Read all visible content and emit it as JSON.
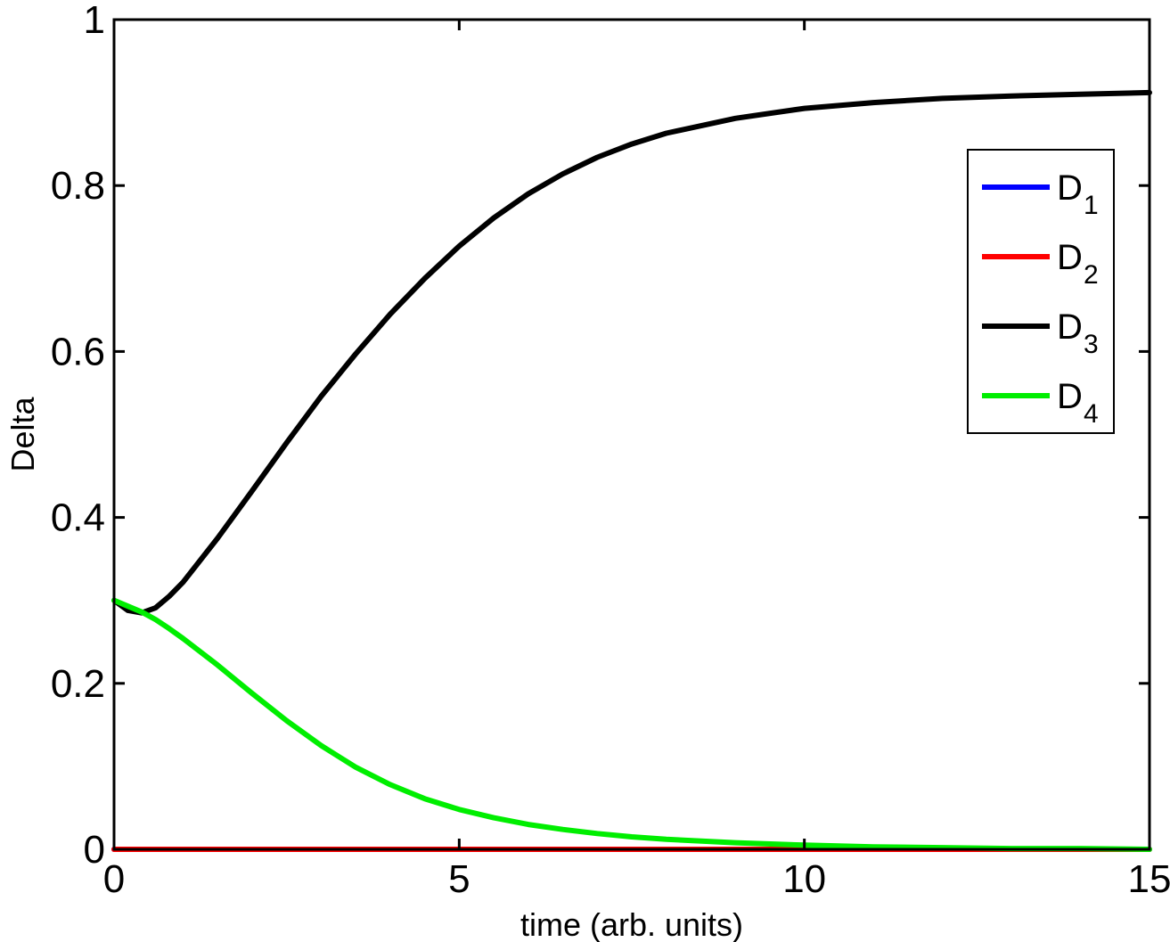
{
  "chart_data": {
    "type": "line",
    "xlabel": "time (arb. units)",
    "ylabel": "Delta",
    "xlim": [
      0,
      15
    ],
    "ylim": [
      0,
      1
    ],
    "xticks": [
      0,
      5,
      10,
      15
    ],
    "yticks": [
      0,
      0.2,
      0.4,
      0.6,
      0.8,
      1
    ],
    "xtick_labels": [
      "0",
      "5",
      "10",
      "15"
    ],
    "ytick_labels": [
      "0",
      "0.2",
      "0.4",
      "0.6",
      "0.8",
      "1"
    ],
    "grid": false,
    "legend_position": "top-right",
    "series": [
      {
        "name": "D",
        "subscript": "1",
        "color": "#0000ff",
        "x": [
          0,
          15
        ],
        "y": [
          0,
          0
        ]
      },
      {
        "name": "D",
        "subscript": "2",
        "color": "#ff0000",
        "x": [
          0,
          15
        ],
        "y": [
          0,
          0
        ]
      },
      {
        "name": "D",
        "subscript": "3",
        "color": "#000000",
        "x": [
          0,
          0.2,
          0.4,
          0.6,
          0.8,
          1.0,
          1.5,
          2.0,
          2.5,
          3.0,
          3.5,
          4.0,
          4.5,
          5.0,
          5.5,
          6.0,
          6.5,
          7.0,
          7.5,
          8.0,
          9.0,
          10.0,
          11.0,
          12.0,
          13.0,
          14.0,
          15.0
        ],
        "y": [
          0.3,
          0.288,
          0.285,
          0.291,
          0.305,
          0.322,
          0.375,
          0.432,
          0.49,
          0.546,
          0.597,
          0.645,
          0.688,
          0.727,
          0.761,
          0.79,
          0.814,
          0.834,
          0.85,
          0.863,
          0.881,
          0.893,
          0.9,
          0.905,
          0.908,
          0.91,
          0.912
        ]
      },
      {
        "name": "D",
        "subscript": "4",
        "color": "#00ee00",
        "x": [
          0,
          0.2,
          0.4,
          0.6,
          0.8,
          1.0,
          1.5,
          2.0,
          2.5,
          3.0,
          3.5,
          4.0,
          4.5,
          5.0,
          5.5,
          6.0,
          6.5,
          7.0,
          7.5,
          8.0,
          9.0,
          10.0,
          11.0,
          12.0,
          13.0,
          14.0,
          15.0
        ],
        "y": [
          0.3,
          0.293,
          0.286,
          0.277,
          0.266,
          0.254,
          0.222,
          0.188,
          0.155,
          0.125,
          0.099,
          0.078,
          0.061,
          0.048,
          0.038,
          0.03,
          0.024,
          0.019,
          0.015,
          0.012,
          0.008,
          0.005,
          0.003,
          0.002,
          0.001,
          0.001,
          0.0
        ]
      }
    ]
  }
}
